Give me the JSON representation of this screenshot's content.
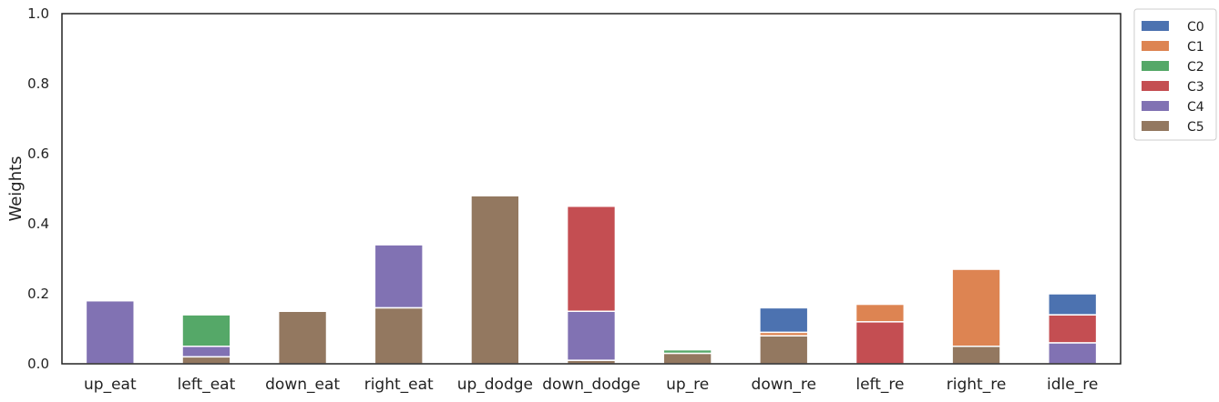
{
  "chart_data": {
    "type": "bar",
    "stacked": true,
    "title": "",
    "xlabel": "",
    "ylabel": "Weights",
    "ylim": [
      0,
      1.0
    ],
    "yticks": [
      "0.0",
      "0.2",
      "0.4",
      "0.6",
      "0.8",
      "1.0"
    ],
    "grid": false,
    "legend_position": "outside-top-right",
    "categories": [
      "up_eat",
      "left_eat",
      "down_eat",
      "right_eat",
      "up_dodge",
      "down_dodge",
      "up_re",
      "down_re",
      "left_re",
      "right_re",
      "idle_re"
    ],
    "series": [
      {
        "name": "C5",
        "color": "#937860",
        "values": [
          0,
          0.02,
          0.15,
          0.16,
          0.48,
          0.01,
          0.03,
          0.08,
          0,
          0.05,
          0
        ]
      },
      {
        "name": "C4",
        "color": "#8172b3",
        "values": [
          0.18,
          0.03,
          0,
          0.18,
          0,
          0.14,
          0,
          0,
          0,
          0,
          0.06
        ]
      },
      {
        "name": "C3",
        "color": "#c44e52",
        "values": [
          0,
          0,
          0,
          0,
          0,
          0.3,
          0,
          0,
          0.12,
          0,
          0.08
        ]
      },
      {
        "name": "C2",
        "color": "#55a868",
        "values": [
          0,
          0.09,
          0,
          0,
          0,
          0,
          0.01,
          0,
          0,
          0,
          0
        ]
      },
      {
        "name": "C1",
        "color": "#dd8452",
        "values": [
          0,
          0,
          0,
          0,
          0,
          0,
          0,
          0.01,
          0.05,
          0.22,
          0
        ]
      },
      {
        "name": "C0",
        "color": "#4c72b0",
        "values": [
          0,
          0,
          0,
          0,
          0,
          0,
          0,
          0.07,
          0,
          0,
          0.06
        ]
      }
    ],
    "legend_order": [
      "C0",
      "C1",
      "C2",
      "C3",
      "C4",
      "C5"
    ]
  }
}
